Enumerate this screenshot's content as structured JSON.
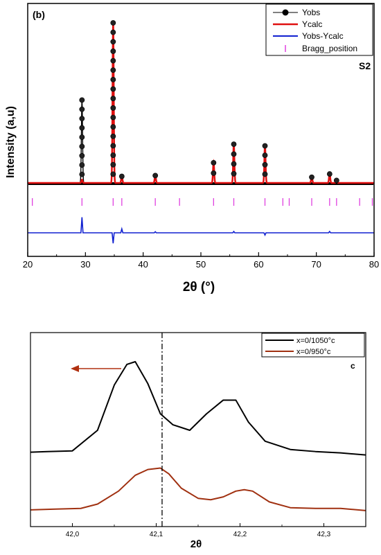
{
  "chart_data": [
    {
      "type": "line",
      "panel_label": "(b)",
      "sample_label": "S2",
      "xlabel": "2θ (°)",
      "ylabel": "Intensity (a,u)",
      "xlim": [
        20,
        80
      ],
      "xticks": [
        20,
        30,
        40,
        50,
        60,
        70,
        80
      ],
      "y_ticks_shown": false,
      "legend_position": "top-right",
      "series": [
        {
          "name": "Yobs",
          "color": "#000000",
          "marker": "filled-circle",
          "peaks": [
            {
              "x": 29.4,
              "y": 0.52
            },
            {
              "x": 34.8,
              "y": 1.0
            },
            {
              "x": 36.3,
              "y": 0.045
            },
            {
              "x": 42.1,
              "y": 0.05
            },
            {
              "x": 52.2,
              "y": 0.13
            },
            {
              "x": 55.7,
              "y": 0.245
            },
            {
              "x": 61.1,
              "y": 0.235
            },
            {
              "x": 69.2,
              "y": 0.04
            },
            {
              "x": 72.3,
              "y": 0.06
            },
            {
              "x": 73.5,
              "y": 0.02
            }
          ]
        },
        {
          "name": "Ycalc",
          "color": "#e01010",
          "peaks": [
            {
              "x": 29.4,
              "y": 0.02
            },
            {
              "x": 34.8,
              "y": 1.0
            },
            {
              "x": 36.3,
              "y": 0.045
            },
            {
              "x": 42.1,
              "y": 0.05
            },
            {
              "x": 52.2,
              "y": 0.13
            },
            {
              "x": 55.7,
              "y": 0.245
            },
            {
              "x": 61.1,
              "y": 0.235
            },
            {
              "x": 69.2,
              "y": 0.04
            },
            {
              "x": 72.3,
              "y": 0.06
            },
            {
              "x": 73.5,
              "y": 0.02
            }
          ]
        },
        {
          "name": "Yobs-Ycalc",
          "color": "#1020d0",
          "spikes": [
            {
              "x": 29.4,
              "y": 0.14
            },
            {
              "x": 34.8,
              "y": -0.095
            },
            {
              "x": 36.3,
              "y": 0.035
            },
            {
              "x": 42.1,
              "y": 0.01
            },
            {
              "x": 55.7,
              "y": 0.012
            },
            {
              "x": 61.1,
              "y": -0.02
            },
            {
              "x": 72.3,
              "y": 0.012
            }
          ]
        },
        {
          "name": "Bragg_position",
          "color": "#e040e0",
          "positions": [
            20.8,
            29.4,
            34.8,
            36.3,
            42.1,
            46.3,
            52.2,
            55.7,
            61.1,
            64.2,
            65.3,
            69.2,
            72.3,
            73.5,
            77.5,
            79.7
          ]
        }
      ]
    },
    {
      "type": "line",
      "panel_label": "c",
      "xlabel": "2θ",
      "xlim": [
        41.95,
        42.35
      ],
      "xticks": [
        "42,0",
        "42,1",
        "42,2",
        "42,3"
      ],
      "xtick_values": [
        42.0,
        42.1,
        42.2,
        42.3
      ],
      "y_ticks_shown": false,
      "legend_position": "top-right",
      "reference_line_x": 42.107,
      "arrow": {
        "direction": "left",
        "color": "#b03010"
      },
      "series": [
        {
          "name": "x=0/1050°c",
          "color": "#000000",
          "x": [
            41.95,
            41.97,
            42.0,
            42.03,
            42.05,
            42.065,
            42.075,
            42.09,
            42.105,
            42.12,
            42.14,
            42.16,
            42.18,
            42.195,
            42.21,
            42.23,
            42.26,
            42.29,
            42.32,
            42.35
          ],
          "y": [
            0.34,
            0.345,
            0.35,
            0.5,
            0.83,
            0.98,
            1.0,
            0.84,
            0.62,
            0.54,
            0.5,
            0.62,
            0.72,
            0.72,
            0.56,
            0.42,
            0.36,
            0.345,
            0.335,
            0.32
          ]
        },
        {
          "name": "x=0/950°c",
          "color": "#a03010",
          "x": [
            41.95,
            41.98,
            42.01,
            42.03,
            42.055,
            42.075,
            42.09,
            42.105,
            42.115,
            42.13,
            42.15,
            42.165,
            42.18,
            42.195,
            42.205,
            42.215,
            42.235,
            42.26,
            42.29,
            42.32,
            42.35
          ],
          "y": [
            0.04,
            0.05,
            0.06,
            0.12,
            0.3,
            0.52,
            0.6,
            0.62,
            0.54,
            0.34,
            0.2,
            0.18,
            0.22,
            0.3,
            0.32,
            0.3,
            0.15,
            0.07,
            0.06,
            0.06,
            0.03
          ]
        }
      ]
    }
  ]
}
